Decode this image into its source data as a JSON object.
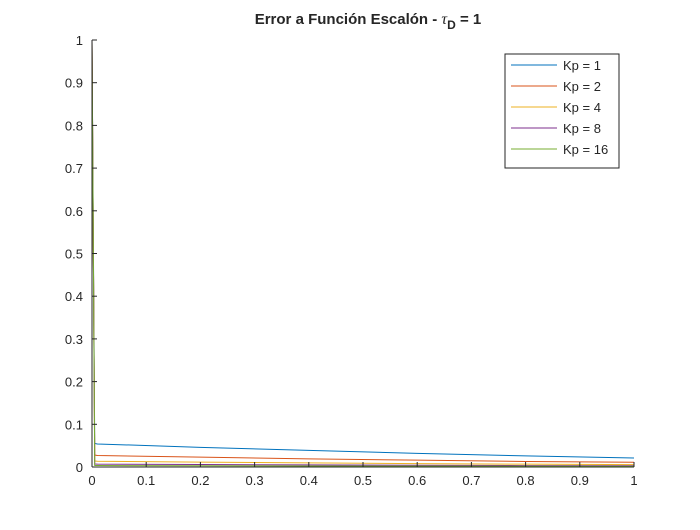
{
  "chart_data": {
    "type": "line",
    "title": {
      "main": "Error a Función Escalón - ",
      "tau": "τ",
      "sub": "D",
      "tail": " = 1"
    },
    "xlabel": "",
    "ylabel": "",
    "xlim": [
      0,
      1
    ],
    "ylim": [
      0,
      1
    ],
    "x_ticks": [
      0,
      0.1,
      0.2,
      0.3,
      0.4,
      0.5,
      0.6,
      0.7,
      0.8,
      0.9,
      1
    ],
    "x_tick_labels": [
      "0",
      "0.1",
      "0.2",
      "0.3",
      "0.4",
      "0.5",
      "0.6",
      "0.7",
      "0.8",
      "0.9",
      "1"
    ],
    "y_ticks": [
      0,
      0.1,
      0.2,
      0.3,
      0.4,
      0.5,
      0.6,
      0.7,
      0.8,
      0.9,
      1
    ],
    "y_tick_labels": [
      "0",
      "0.1",
      "0.2",
      "0.3",
      "0.4",
      "0.5",
      "0.6",
      "0.7",
      "0.8",
      "0.9",
      "1"
    ],
    "grid": false,
    "legend_position": "top-right",
    "series": [
      {
        "name": "Kp = 1",
        "color": "#0072BD",
        "x": [
          0,
          0.005,
          0.01,
          0.2,
          0.4,
          0.6,
          0.8,
          1
        ],
        "y": [
          1,
          0.055,
          0.054,
          0.046,
          0.039,
          0.032,
          0.026,
          0.021
        ]
      },
      {
        "name": "Kp = 2",
        "color": "#D95319",
        "x": [
          0,
          0.005,
          0.01,
          0.2,
          0.4,
          0.6,
          0.8,
          1
        ],
        "y": [
          1,
          0.028,
          0.027,
          0.023,
          0.019,
          0.016,
          0.013,
          0.011
        ]
      },
      {
        "name": "Kp = 4",
        "color": "#EDB120",
        "x": [
          0,
          0.005,
          0.01,
          0.2,
          0.4,
          0.6,
          0.8,
          1
        ],
        "y": [
          1,
          0.014,
          0.0135,
          0.0115,
          0.0097,
          0.008,
          0.0066,
          0.0055
        ]
      },
      {
        "name": "Kp = 8",
        "color": "#7E2F8E",
        "x": [
          0,
          0.005,
          0.01,
          0.2,
          0.4,
          0.6,
          0.8,
          1
        ],
        "y": [
          1,
          0.007,
          0.0068,
          0.0058,
          0.0049,
          0.004,
          0.0033,
          0.0028
        ]
      },
      {
        "name": "Kp = 16",
        "color": "#77AC30",
        "x": [
          0,
          0.005,
          0.01,
          0.2,
          0.4,
          0.6,
          0.8,
          1
        ],
        "y": [
          1,
          0.0035,
          0.0034,
          0.0029,
          0.0024,
          0.002,
          0.0017,
          0.0014
        ]
      }
    ]
  }
}
